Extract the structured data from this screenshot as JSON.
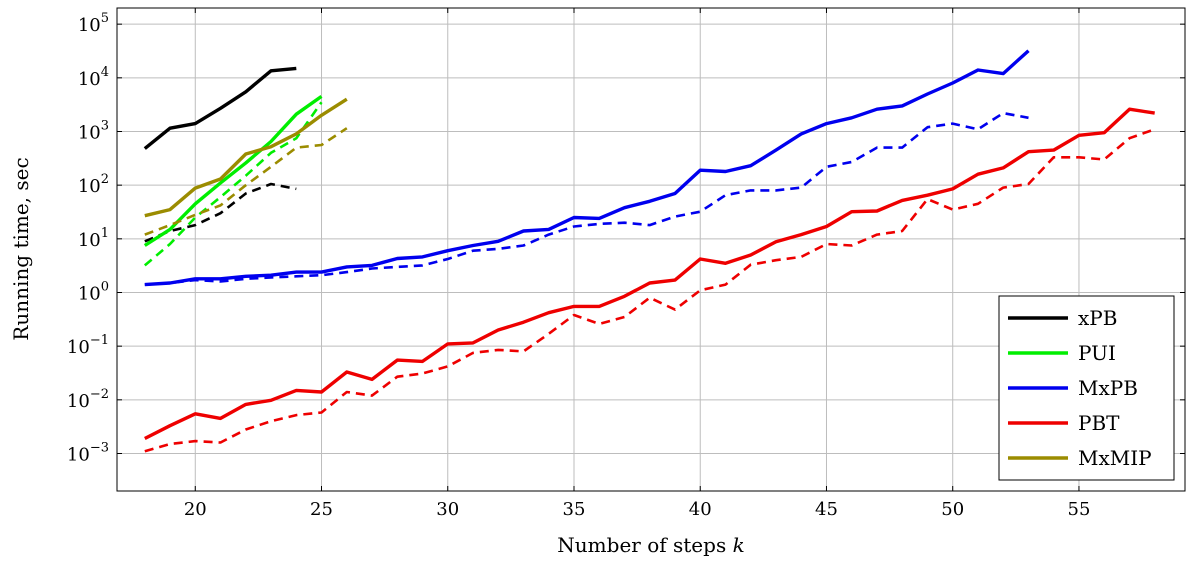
{
  "chart_data": {
    "type": "line",
    "xlabel": "Number of steps k",
    "ylabel": "Running time, sec",
    "xlim": [
      16.9,
      59.2
    ],
    "ylim": [
      0.0002,
      200000
    ],
    "yscale": "log",
    "grid": true,
    "legend_position": "bottom-right",
    "xticks": [
      20,
      25,
      30,
      35,
      40,
      45,
      50,
      55
    ],
    "yticks": [
      {
        "value": 0.001,
        "base": "10",
        "exp": "−3"
      },
      {
        "value": 0.01,
        "base": "10",
        "exp": "−2"
      },
      {
        "value": 0.1,
        "base": "10",
        "exp": "−1"
      },
      {
        "value": 1,
        "base": "10",
        "exp": "0"
      },
      {
        "value": 10,
        "base": "10",
        "exp": "1"
      },
      {
        "value": 100,
        "base": "10",
        "exp": "2"
      },
      {
        "value": 1000,
        "base": "10",
        "exp": "3"
      },
      {
        "value": 10000,
        "base": "10",
        "exp": "4"
      },
      {
        "value": 100000,
        "base": "10",
        "exp": "5"
      }
    ],
    "series": [
      {
        "name": "xPB",
        "color": "#000000",
        "style": "solid",
        "x": [
          18,
          19,
          20,
          21,
          22,
          23,
          24
        ],
        "y": [
          480,
          1150,
          1400,
          2700,
          5500,
          13500,
          15000
        ]
      },
      {
        "name": "xPB",
        "color": "#000000",
        "style": "dashed",
        "legend": false,
        "x": [
          18,
          19,
          20,
          21,
          22,
          23,
          24
        ],
        "y": [
          9,
          14,
          18,
          30,
          70,
          105,
          85
        ]
      },
      {
        "name": "PUI",
        "color": "#00ee00",
        "style": "solid",
        "x": [
          18,
          19,
          20,
          21,
          22,
          23,
          24,
          25
        ],
        "y": [
          7.5,
          15,
          45,
          110,
          260,
          650,
          2100,
          4500
        ]
      },
      {
        "name": "PUI",
        "color": "#00ee00",
        "style": "dashed",
        "legend": false,
        "x": [
          18,
          19,
          20,
          21,
          22,
          23,
          24,
          25
        ],
        "y": [
          3.2,
          8,
          25,
          60,
          150,
          400,
          750,
          3500
        ]
      },
      {
        "name": "MxPB",
        "color": "#0000ee",
        "style": "solid",
        "x": [
          18,
          19,
          20,
          21,
          22,
          23,
          24,
          25,
          26,
          27,
          28,
          29,
          30,
          31,
          32,
          33,
          34,
          35,
          36,
          37,
          38,
          39,
          40,
          41,
          42,
          43,
          44,
          45,
          46,
          47,
          48,
          49,
          50,
          51,
          52,
          53
        ],
        "y": [
          1.4,
          1.5,
          1.8,
          1.8,
          2.0,
          2.1,
          2.4,
          2.4,
          3.0,
          3.2,
          4.3,
          4.6,
          6.0,
          7.5,
          9.0,
          14,
          15,
          25,
          24,
          38,
          50,
          70,
          190,
          180,
          230,
          450,
          900,
          1400,
          1800,
          2600,
          3000,
          5000,
          8000,
          14000,
          12000,
          32000
        ]
      },
      {
        "name": "MxPB",
        "color": "#0000ee",
        "style": "dashed",
        "legend": false,
        "x": [
          18,
          19,
          20,
          21,
          22,
          23,
          24,
          25,
          26,
          27,
          28,
          29,
          30,
          31,
          32,
          33,
          34,
          35,
          36,
          37,
          38,
          39,
          40,
          41,
          42,
          43,
          44,
          45,
          46,
          47,
          48,
          49,
          50,
          51,
          52,
          53
        ],
        "y": [
          1.4,
          1.5,
          1.7,
          1.6,
          1.8,
          1.9,
          2.0,
          2.1,
          2.4,
          2.8,
          3.0,
          3.2,
          4.2,
          6.0,
          6.5,
          7.5,
          12,
          17,
          19,
          20,
          18,
          26,
          32,
          65,
          80,
          80,
          90,
          220,
          270,
          500,
          500,
          1200,
          1400,
          1100,
          2200,
          1800
        ]
      },
      {
        "name": "PBT",
        "color": "#ee0000",
        "style": "solid",
        "x": [
          18,
          19,
          20,
          21,
          22,
          23,
          24,
          25,
          26,
          27,
          28,
          29,
          30,
          31,
          32,
          33,
          34,
          35,
          36,
          37,
          38,
          39,
          40,
          41,
          42,
          43,
          44,
          45,
          46,
          47,
          48,
          49,
          50,
          51,
          52,
          53,
          54,
          55,
          56,
          57,
          58
        ],
        "y": [
          0.0019,
          0.0033,
          0.0055,
          0.0045,
          0.0082,
          0.0098,
          0.015,
          0.014,
          0.033,
          0.024,
          0.055,
          0.052,
          0.11,
          0.115,
          0.2,
          0.28,
          0.42,
          0.55,
          0.55,
          0.85,
          1.5,
          1.7,
          4.2,
          3.5,
          5,
          8.8,
          12,
          17,
          32,
          33,
          52,
          65,
          85,
          160,
          210,
          420,
          450,
          850,
          950,
          2600,
          2200
        ]
      },
      {
        "name": "PBT",
        "color": "#ee0000",
        "style": "dashed",
        "legend": false,
        "x": [
          18,
          19,
          20,
          21,
          22,
          23,
          24,
          25,
          26,
          27,
          28,
          29,
          30,
          31,
          32,
          33,
          34,
          35,
          36,
          37,
          38,
          39,
          40,
          41,
          42,
          43,
          44,
          45,
          46,
          47,
          48,
          49,
          50,
          51,
          52,
          53,
          54,
          55,
          56,
          57,
          58
        ],
        "y": [
          0.0011,
          0.0015,
          0.0017,
          0.0016,
          0.0028,
          0.004,
          0.0052,
          0.0058,
          0.014,
          0.012,
          0.027,
          0.031,
          0.042,
          0.075,
          0.085,
          0.08,
          0.17,
          0.38,
          0.26,
          0.35,
          0.8,
          0.48,
          1.1,
          1.4,
          3.3,
          4.0,
          4.6,
          8.0,
          7.5,
          12,
          14,
          55,
          35,
          45,
          90,
          105,
          330,
          330,
          300,
          750,
          1100
        ]
      },
      {
        "name": "MxMIP",
        "color": "#9b8c00",
        "style": "solid",
        "x": [
          18,
          19,
          20,
          21,
          22,
          23,
          24,
          25,
          26
        ],
        "y": [
          27,
          35,
          88,
          130,
          380,
          520,
          900,
          2000,
          4000
        ]
      },
      {
        "name": "MxMIP",
        "color": "#9b8c00",
        "style": "dashed",
        "legend": false,
        "x": [
          18,
          19,
          20,
          21,
          22,
          23,
          24,
          25,
          26
        ],
        "y": [
          12,
          18,
          28,
          42,
          100,
          220,
          500,
          560,
          1150
        ]
      }
    ]
  }
}
